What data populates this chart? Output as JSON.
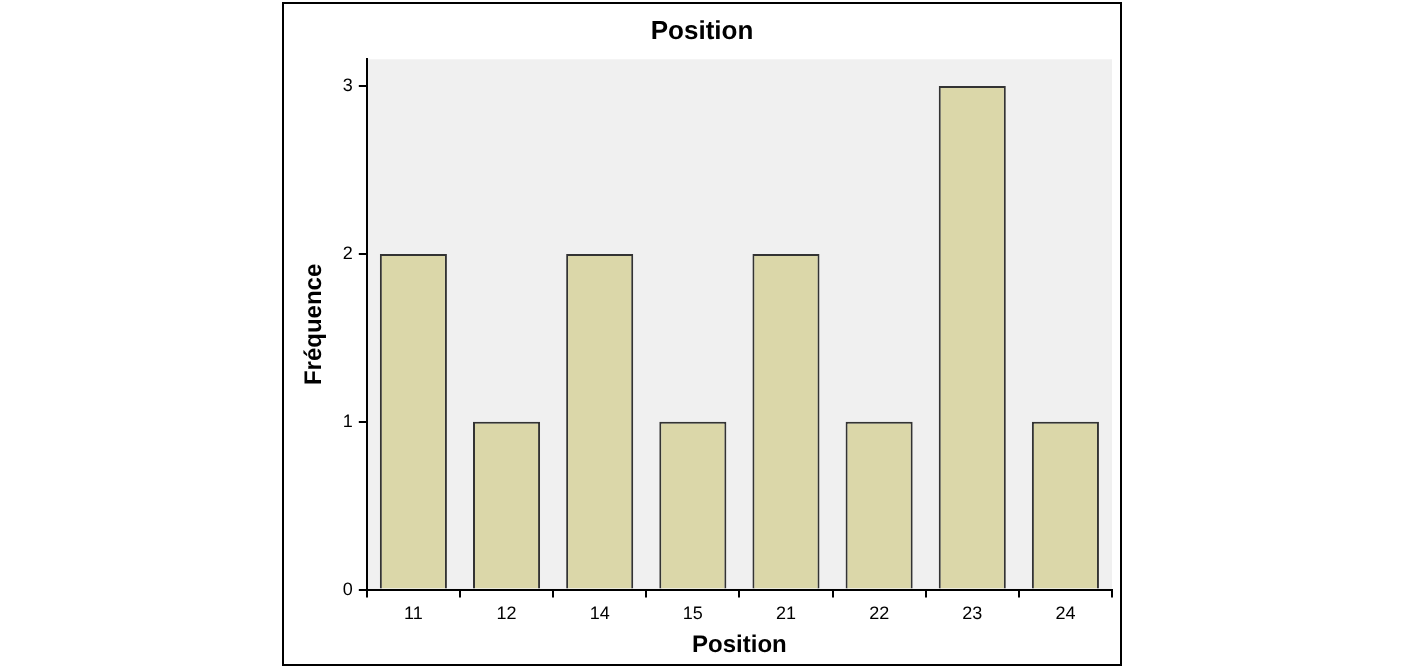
{
  "chart_data": {
    "type": "bar",
    "title": "Position",
    "xlabel": "Position",
    "ylabel": "Fréquence",
    "categories": [
      "11",
      "12",
      "14",
      "15",
      "21",
      "22",
      "23",
      "24"
    ],
    "values": [
      2,
      1,
      2,
      1,
      2,
      1,
      3,
      1
    ],
    "color": "#dbd7a9",
    "ylim": [
      0,
      3.16
    ],
    "yticks": [
      0,
      1,
      2,
      3
    ],
    "grid": false,
    "legend": false
  }
}
